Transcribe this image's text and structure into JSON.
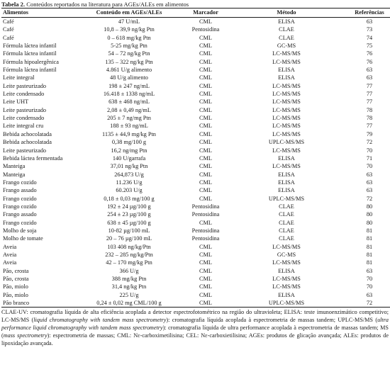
{
  "caption": {
    "label": "Tabela 2.",
    "text": " Conteúdos reportados na literatura para AGEs/ALEs em alimentos"
  },
  "table": {
    "headers": [
      "Alimentos",
      "Conteúdo em AGEs/ALEs",
      "Marcador",
      "Método",
      "Referências"
    ],
    "rows": [
      [
        "Café",
        "47 U/mL",
        "CML",
        "ELISA",
        "63"
      ],
      [
        "Café",
        "10,8 – 39,9 ng/kg Ptn",
        "Pentosidina",
        "CLAE",
        "73"
      ],
      [
        "Café",
        "0 – 618 mg/kg Ptn",
        "CML",
        "CLAE",
        "74"
      ],
      [
        "Fórmula láctea infantil",
        "5-25 mg/kg Ptn",
        "CML",
        "GC-MS",
        "75"
      ],
      [
        "Fórmula láctea infantil",
        "54 – 72 ng/kg Ptn",
        "CML",
        "LC-MS/MS",
        "76"
      ],
      [
        "Fórmula hipoalergênica",
        "135 – 322 ng/kg Ptn",
        "CML",
        "LC-MS/MS",
        "76"
      ],
      [
        "Fórmula láctea infantil",
        "4.861 U/g alimento",
        "CML",
        "ELISA",
        "63"
      ],
      [
        "Leite integral",
        "48 U/g alimento",
        "CML",
        "ELISA",
        "63"
      ],
      [
        "Leite pasteurizado",
        "198 ± 247 ng/mL",
        "CML",
        "LC-MS/MS",
        "77"
      ],
      [
        "Leite condensado",
        "16.418 ± 1338 ng/mL",
        "CML",
        "LC-MS/MS",
        "77"
      ],
      [
        "Leite UHT",
        "638 ± 468 ng/mL",
        "CML",
        "LC-MS/MS",
        "77"
      ],
      [
        "Leite pasteurizado",
        "2,08 ± 0,49 ng/mL",
        "CML",
        "LC-MS/MS",
        "78"
      ],
      [
        "Leite condensado",
        "205 ± 7 ng/mg Ptn",
        "CML",
        "LC-MS/MS",
        "78"
      ],
      [
        "Leite integral cru",
        "188 ± 93 ng/mL",
        "CML",
        "LC-MS/MS",
        "77"
      ],
      [
        "Bebida achocolatada",
        "1135 ± 44,9 mg/kg Ptn",
        "CML",
        "LC-MS/MS",
        "79"
      ],
      [
        "Bebida achocolatada",
        "0,38 mg/100 g",
        "CML",
        "UPLC-MS/MS",
        "72"
      ],
      [
        "Leite pasteurizado",
        "16,2 ng/mg Ptn",
        "CML",
        "LC-MS/MS",
        "70"
      ],
      [
        "Bebida láctea fermentada",
        "140 U/garrafa",
        "CML",
        "ELISA",
        "71"
      ],
      [
        "Manteiga",
        "37,01 ng/kg Ptn",
        "CML",
        "LC-MS/MS",
        "70"
      ],
      [
        "Manteiga",
        "264,873 U/g",
        "CML",
        "ELISA",
        "63"
      ],
      [
        "Frango cozido",
        "11.236 U/g",
        "CML",
        "ELISA",
        "63"
      ],
      [
        "Frango assado",
        "60.203 U/g",
        "CML",
        "ELISA",
        "63"
      ],
      [
        "Frango cozido",
        "0,18 ± 0,03 mg/100 g",
        "CML",
        "UPLC-MS/MS",
        "72"
      ],
      [
        "Frango cozido",
        "192 ± 24 µg/100 g",
        "Pentosidina",
        "CLAE",
        "80"
      ],
      [
        "Frango assado",
        "254 ± 23 µg/100 g",
        "Pentosidina",
        "CLAE",
        "80"
      ],
      [
        "Frango cozido",
        "638 ± 45 µg/100 g",
        "CML",
        "CLAE",
        "80"
      ],
      [
        "Molho de soja",
        "10-82 µg/100 mL",
        "Pentosidina",
        "CLAE",
        "81"
      ],
      [
        "Molho de tomate",
        "20 – 76 µg/100 mL",
        "Pentosidina",
        "CLAE",
        "81"
      ],
      [
        "Aveia",
        "103 408 ng/kg/Ptn",
        "CML",
        "LC-MS/MS",
        "81"
      ],
      [
        "Aveia",
        "232 – 285 ng/kg/Ptn",
        "CML",
        "GC-MS",
        "81"
      ],
      [
        "Aveia",
        "42 – 170 mg/kg Ptn",
        "CML",
        "LC-MS/MS",
        "81"
      ],
      [
        "Pão, crosta",
        "366 U/g",
        "CML",
        "ELISA",
        "63"
      ],
      [
        "Pão, crosta",
        "388 mg/kg Ptn",
        "CML",
        "LC-MS/MS",
        "70"
      ],
      [
        "Pão, miolo",
        "31,4 ng/kg Ptn",
        "CML",
        "LC-MS/MS",
        "70"
      ],
      [
        "Pão, miolo",
        "225 U/g",
        "CML",
        "ELISA",
        "63"
      ],
      [
        "Pão branco",
        "0,24 ± 0,02 mg CML/100 g",
        "CML",
        "UPLC-MS/MS",
        "72"
      ]
    ]
  },
  "notes": {
    "p1": "CLAE-UV: cromatografia líquida de alta eficiência acoplada a detector espectrofotométrico na região do ultravioleta; ELISA: teste imunoenzimático competitivo; LC-MS/MS (",
    "p1_i": "liquid chromatography with tandem mass spectrometry",
    "p2": "): cromatografia líquida acoplada à espectrometria de massas tandem; UPLC-MS/MS (",
    "p2_i": "ultra performance liquid chromatography with tandem mass spectrometry",
    "p3": "): cromatografia líquida de ultra performance acoplada à espectrometria de massas tandem; MS (",
    "p3_i": "mass spectrometry",
    "p4": "): espectrometria de massas; CML: Nε-carboximetilisina; CEL: Nε-carboxietilisina; AGEs: produtos de glicação avançada; ALEs: produtos de lipoxidação avançada."
  }
}
